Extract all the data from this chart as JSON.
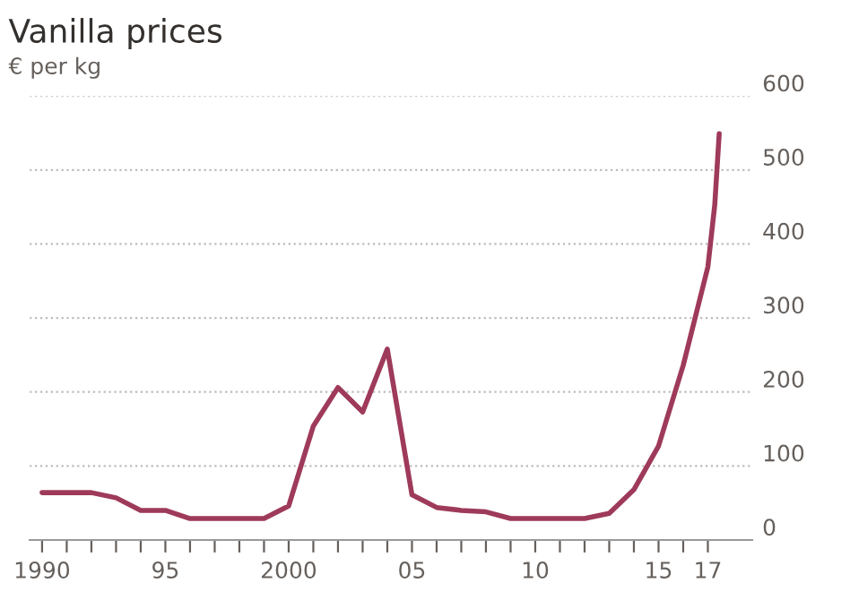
{
  "chart_data": {
    "type": "line",
    "title": "Vanilla prices",
    "subtitle": "€ per kg",
    "x": [
      1990,
      1991,
      1992,
      1993,
      1994,
      1995,
      1996,
      1997,
      1998,
      1999,
      2000,
      2001,
      2002,
      2003,
      2004,
      2005,
      2006,
      2007,
      2008,
      2009,
      2010,
      2011,
      2012,
      2013,
      2014,
      2015,
      2016,
      2017,
      2017.28,
      2017.46
    ],
    "series": [
      {
        "color": "#9e3a5a",
        "values": [
          64,
          64,
          64,
          57,
          40,
          40,
          29,
          29,
          29,
          29,
          46,
          154,
          206,
          173,
          258,
          61,
          44,
          40,
          38,
          29,
          29,
          29,
          29,
          36,
          68,
          127,
          236,
          369,
          453,
          549
        ]
      }
    ],
    "xlim": [
      1989.5,
      2018.8
    ],
    "ylim": [
      0,
      600
    ],
    "xticks": [
      {
        "value": 1990,
        "label": "1990"
      },
      {
        "value": 1991,
        "label": null
      },
      {
        "value": 1992,
        "label": null
      },
      {
        "value": 1993,
        "label": null
      },
      {
        "value": 1994,
        "label": null
      },
      {
        "value": 1995,
        "label": "95"
      },
      {
        "value": 1996,
        "label": null
      },
      {
        "value": 1997,
        "label": null
      },
      {
        "value": 1998,
        "label": null
      },
      {
        "value": 1999,
        "label": null
      },
      {
        "value": 2000,
        "label": "2000"
      },
      {
        "value": 2001,
        "label": null
      },
      {
        "value": 2002,
        "label": null
      },
      {
        "value": 2003,
        "label": null
      },
      {
        "value": 2004,
        "label": null
      },
      {
        "value": 2005,
        "label": "05"
      },
      {
        "value": 2006,
        "label": null
      },
      {
        "value": 2007,
        "label": null
      },
      {
        "value": 2008,
        "label": null
      },
      {
        "value": 2009,
        "label": null
      },
      {
        "value": 2010,
        "label": "10"
      },
      {
        "value": 2011,
        "label": null
      },
      {
        "value": 2012,
        "label": null
      },
      {
        "value": 2013,
        "label": null
      },
      {
        "value": 2014,
        "label": null
      },
      {
        "value": 2015,
        "label": "15"
      },
      {
        "value": 2016,
        "label": null
      },
      {
        "value": 2017,
        "label": "17"
      }
    ],
    "yticks": [
      0,
      100,
      200,
      300,
      400,
      500,
      600
    ],
    "grid": "y",
    "legend": false,
    "marker": "none",
    "line_style": "solid"
  }
}
